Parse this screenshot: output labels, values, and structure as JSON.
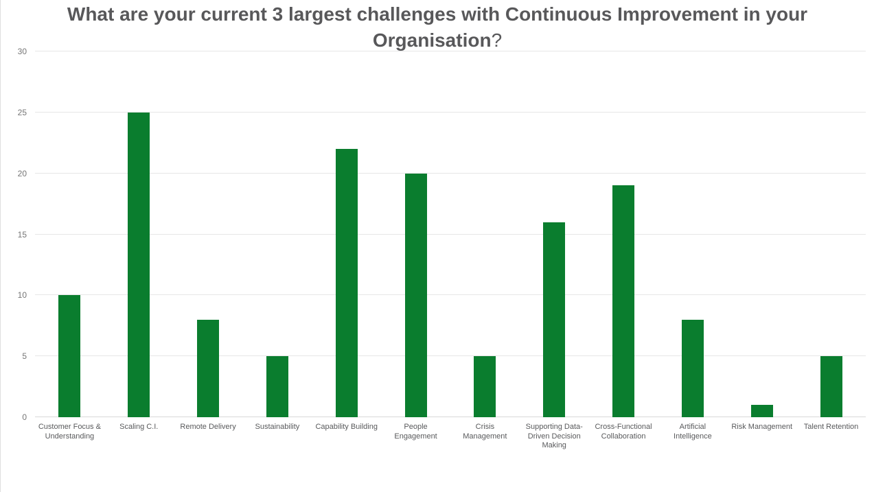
{
  "page": {
    "background": "#ffffff",
    "left_edge_color": "#dedede"
  },
  "chart_data": {
    "type": "bar",
    "title": "What are your current 3 largest challenges with Continuous Improvement in your Organisation?",
    "title_main": "What are your current 3 largest challenges with Continuous Improvement in your Organisation",
    "title_suffix": "?",
    "categories": [
      "Customer Focus & Understanding",
      "Scaling C.I.",
      "Remote Delivery",
      "Sustainability",
      "Capability Building",
      "People Engagement",
      "Crisis Management",
      "Supporting Data-Driven Decision Making",
      "Cross-Functional Collaboration",
      "Artificial Intelligence",
      "Risk Management",
      "Talent Retention"
    ],
    "label_lines": [
      [
        "Customer Focus &",
        "Understanding"
      ],
      [
        "Scaling C.I."
      ],
      [
        "Remote Delivery"
      ],
      [
        "Sustainability"
      ],
      [
        "Capability Building"
      ],
      [
        "People",
        "Engagement"
      ],
      [
        "Crisis",
        "Management"
      ],
      [
        "Supporting Data-",
        "Driven Decision",
        "Making"
      ],
      [
        "Cross-Functional",
        "Collaboration"
      ],
      [
        "Artificial",
        "Intelligence"
      ],
      [
        "Risk Management"
      ],
      [
        "Talent Retention"
      ]
    ],
    "values": [
      10,
      25,
      8,
      5,
      22,
      20,
      5,
      16,
      19,
      8,
      1,
      5
    ],
    "xlabel": "",
    "ylabel": "",
    "ylim": [
      0,
      30
    ],
    "yticks": [
      0,
      5,
      10,
      15,
      20,
      25,
      30
    ],
    "grid": true,
    "legend_position": "none",
    "colors": {
      "bar": "#0a7d2e",
      "gridline": "#e6e6e6",
      "baseline": "#d9d9d9",
      "title": "#58585a",
      "y_tick_text": "#757575",
      "x_tick_text": "#58595b"
    }
  }
}
